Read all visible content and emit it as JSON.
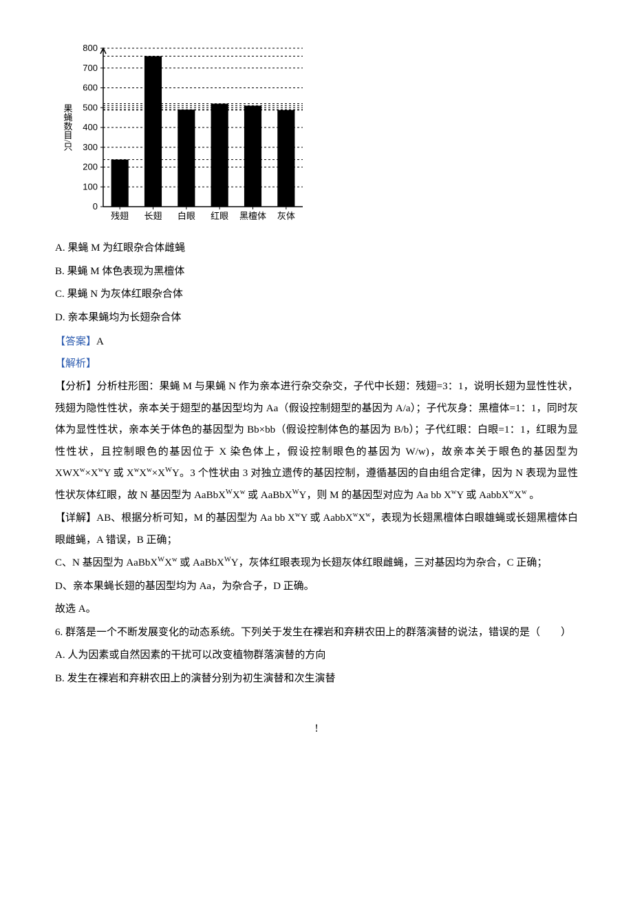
{
  "chart": {
    "type": "bar",
    "categories": [
      "残翅",
      "长翅",
      "白眼",
      "红眼",
      "黑檀体",
      "灰体"
    ],
    "values": [
      238,
      760,
      490,
      520,
      510,
      488
    ],
    "bar_color": "#000000",
    "ylabel": "果蝇数目/只",
    "ylim": [
      0,
      800
    ],
    "ytick_step": 100,
    "yticks": [
      0,
      100,
      200,
      300,
      400,
      500,
      600,
      700,
      800
    ],
    "axis_color": "#000000",
    "grid_color": "#000000",
    "grid_dash": "3,3",
    "background_color": "#ffffff",
    "label_fontsize": 13,
    "tick_fontsize": 13,
    "bar_width_ratio": 0.52,
    "yticks_at_bar_heights": true
  },
  "options": {
    "a": "A. 果蝇 M 为红眼杂合体雌蝇",
    "b": "B. 果蝇 M 体色表现为黑檀体",
    "c": "C. 果蝇 N 为灰体红眼杂合体",
    "d": "D. 亲本果蝇均为长翅杂合体"
  },
  "answer": {
    "label": "【答案】",
    "value": "A"
  },
  "jiexi_label": "【解析】",
  "analysis": {
    "label": "【分析】",
    "p1": "分析柱形图：果蝇 M 与果蝇 N 作为亲本进行杂交杂交，子代中长翅：残翅=3：1，说明长翅为显性性状，残翅为隐性性状，亲本关于翅型的基因型均为 Aa（假设控制翅型的基因为 A/a）；子代灰身：黑檀体=1：1，同时灰体为显性性状，亲本关于体色的基因型为 Bb×bb（假设控制体色的基因为 B/b）；子代红眼：白眼=1：1，红眼为显性性状，且控制眼色的基因位于 X 染色体上，假设控制眼色的基因为 W/w)，故亲本关于眼色的基因型为 X",
    "p1_tail": "。3 个性状由 3 对独立遗传的基因控制，遵循基因的自由组合定律，因为 N 表现为显性性状灰体红眼，故 N 基因型为 AaBbX",
    "p1_tail2": "，则 M 的基因型对应为 Aa bb X",
    "p1_tail3": " 。"
  },
  "detail": {
    "label": "【详解】",
    "ab": "AB、根据分析可知，M 的基因型为 Aa bb X",
    "ab_mid": "，表现为长翅黑檀体白眼雄蝇或长翅黑檀体白眼雌蝇，A 错误，B 正确；",
    "c": "C、N 基因型为 AaBbX",
    "c_mid": "，灰体红眼表现为长翅灰体红眼雌蝇，三对基因均为杂合，C 正确；",
    "d": "D、亲本果蝇长翅的基因型均为 Aa，为杂合子，D 正确。",
    "conclusion": "故选 A。"
  },
  "q6": {
    "stem": "6. 群落是一个不断发展变化的动态系统。下列关于发生在裸岩和弃耕农田上的群落演替的说法，错误的是（　　）",
    "a": "A. 人为因素或自然因素的干扰可以改变植物群落演替的方向",
    "b": "B. 发生在裸岩和弃耕农田上的演替分别为初生演替和次生演替"
  },
  "footer": "!"
}
